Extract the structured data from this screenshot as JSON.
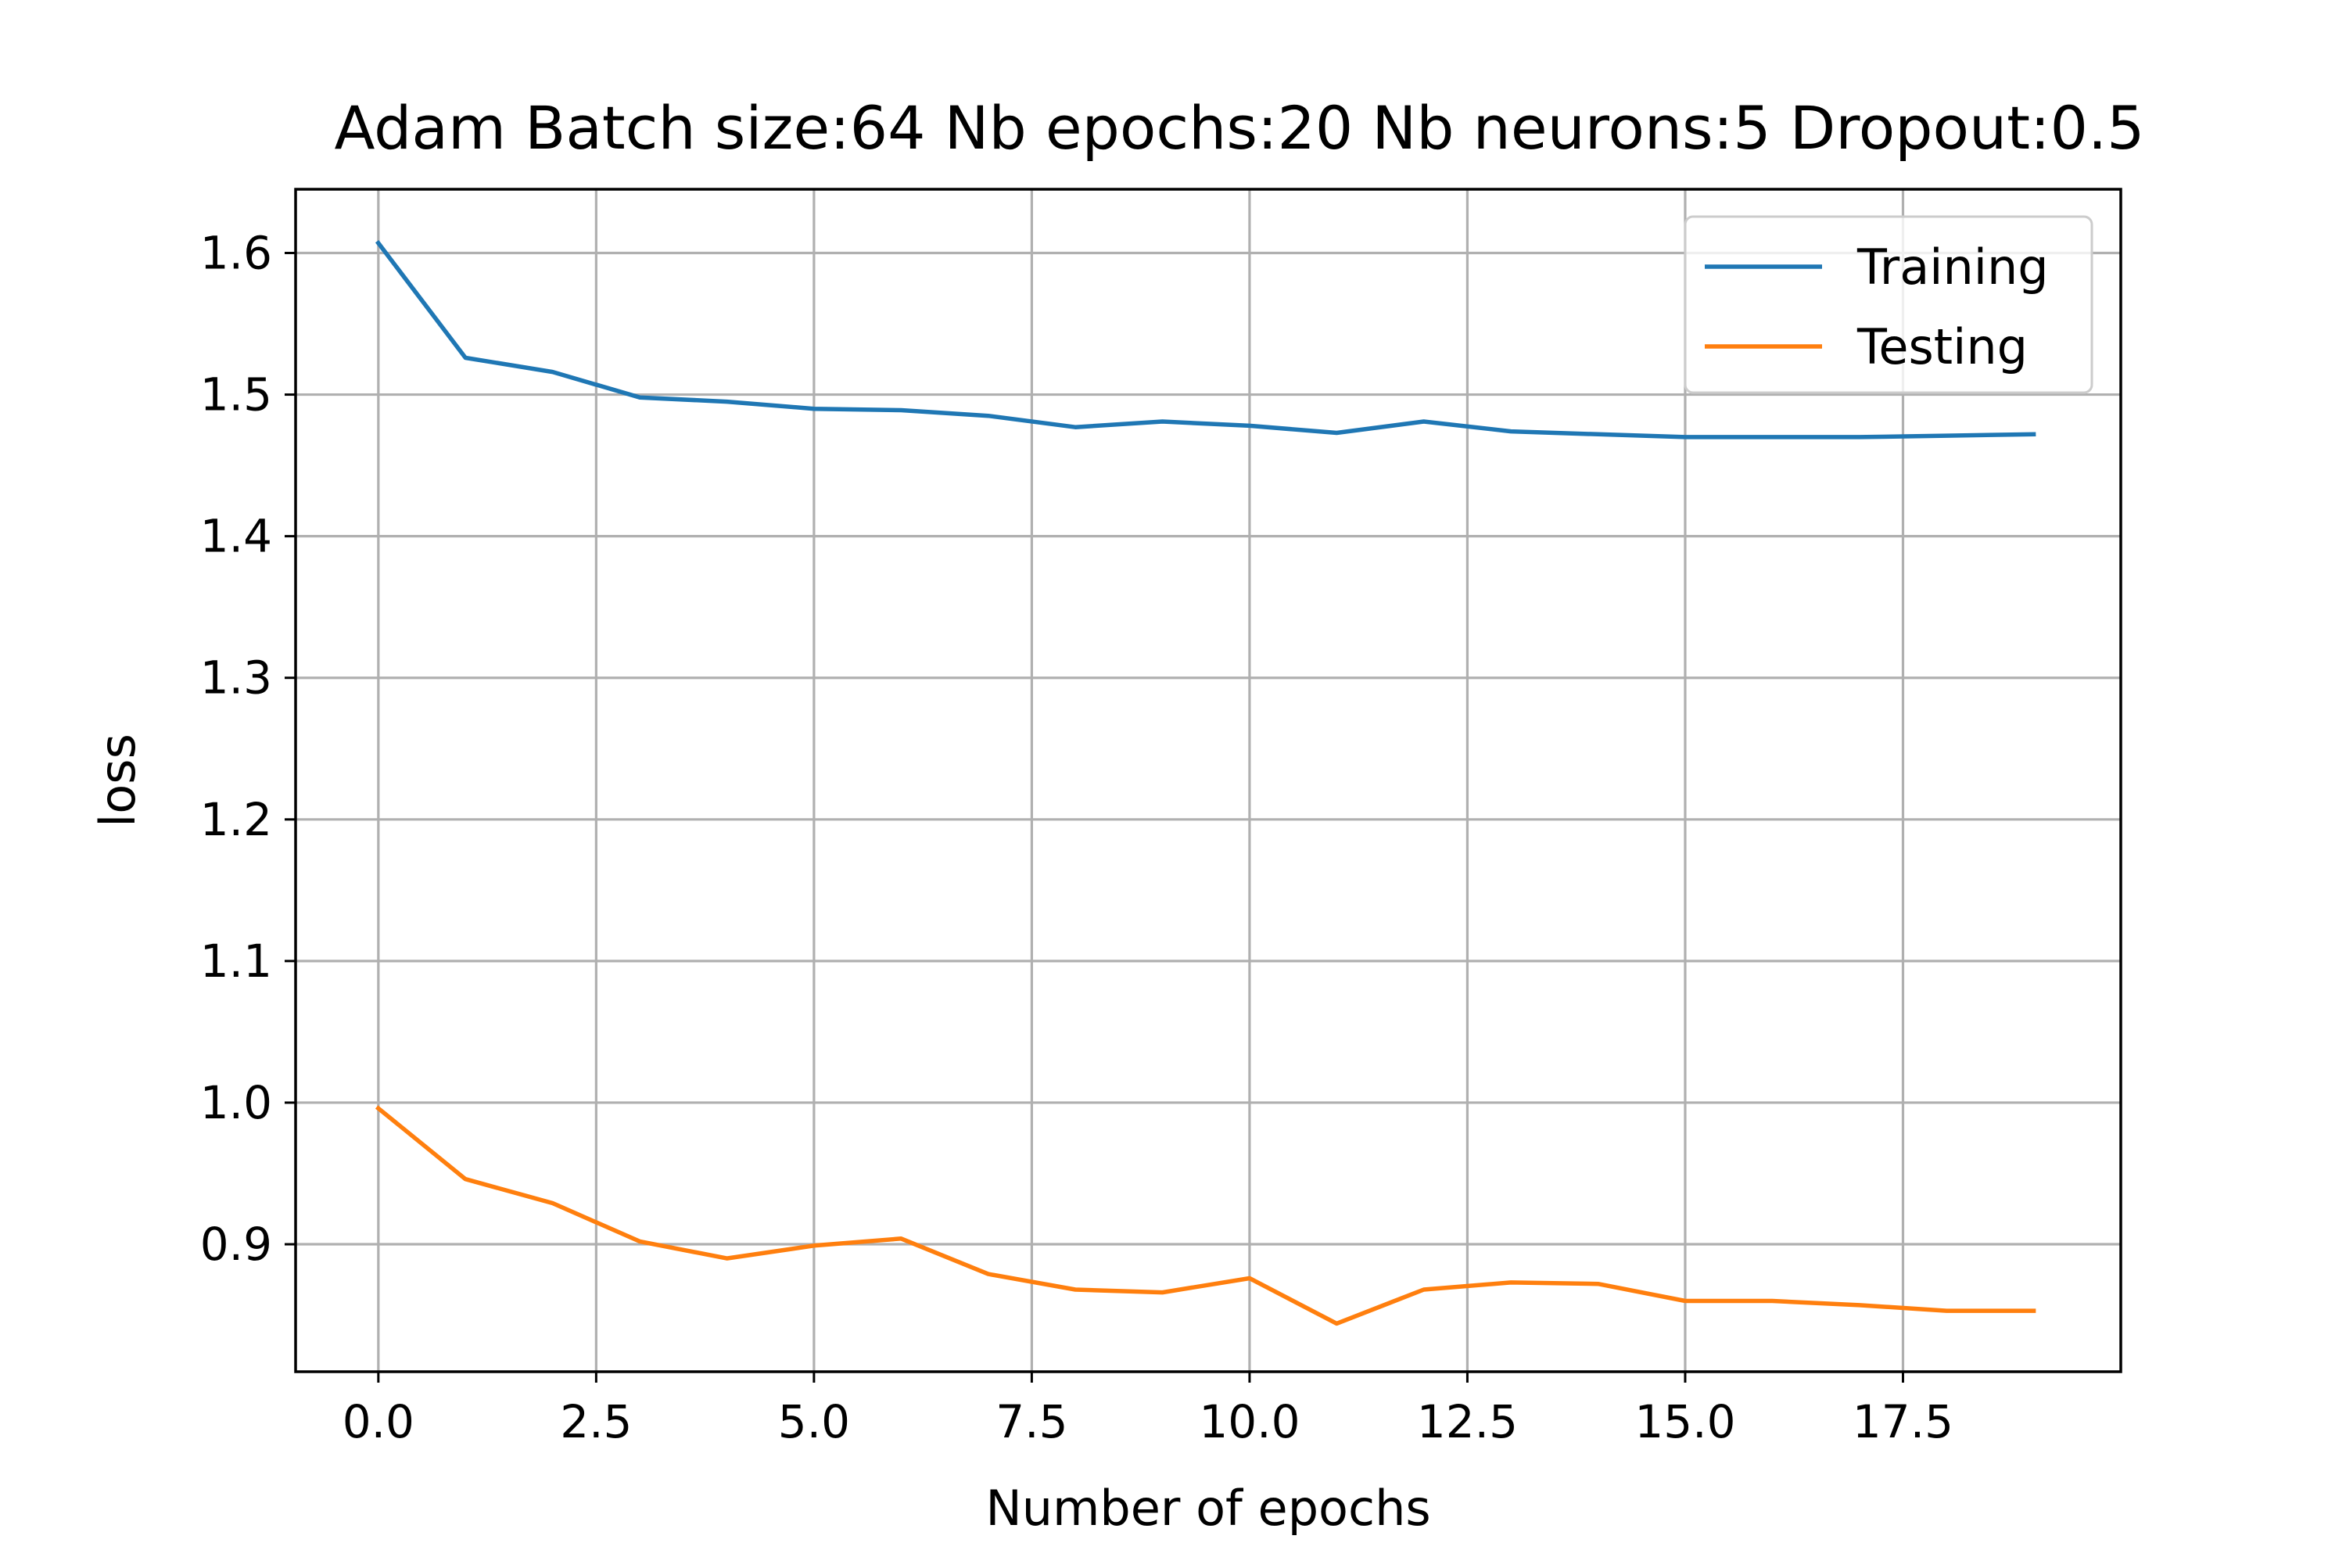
{
  "chart_data": {
    "type": "line",
    "title": "Adam Batch size:64 Nb epochs:20 Nb neurons:5 Dropout:0.5",
    "xlabel": "Number of epochs",
    "ylabel": "loss",
    "xlim": [
      -0.95,
      20.0
    ],
    "ylim": [
      0.81,
      1.645
    ],
    "xticks": [
      0.0,
      2.5,
      5.0,
      7.5,
      10.0,
      12.5,
      15.0,
      17.5
    ],
    "xtick_labels": [
      "0.0",
      "2.5",
      "5.0",
      "7.5",
      "10.0",
      "12.5",
      "15.0",
      "17.5"
    ],
    "yticks": [
      0.9,
      1.0,
      1.1,
      1.2,
      1.3,
      1.4,
      1.5,
      1.6
    ],
    "ytick_labels": [
      "0.9",
      "1.0",
      "1.1",
      "1.2",
      "1.3",
      "1.4",
      "1.5",
      "1.6"
    ],
    "grid": true,
    "legend_position": "top-right",
    "x": [
      0,
      1,
      2,
      3,
      4,
      5,
      6,
      7,
      8,
      9,
      10,
      11,
      12,
      13,
      14,
      15,
      16,
      17,
      18,
      19
    ],
    "series": [
      {
        "name": "Training",
        "color": "#1f77b4",
        "values": [
          1.607,
          1.526,
          1.516,
          1.498,
          1.495,
          1.49,
          1.489,
          1.485,
          1.477,
          1.481,
          1.478,
          1.473,
          1.481,
          1.474,
          1.472,
          1.47,
          1.47,
          1.47,
          1.471,
          1.472
        ]
      },
      {
        "name": "Testing",
        "color": "#ff7f0e",
        "values": [
          0.996,
          0.946,
          0.929,
          0.902,
          0.89,
          0.899,
          0.904,
          0.879,
          0.868,
          0.866,
          0.876,
          0.844,
          0.868,
          0.873,
          0.872,
          0.86,
          0.86,
          0.857,
          0.853,
          0.853
        ]
      }
    ]
  }
}
